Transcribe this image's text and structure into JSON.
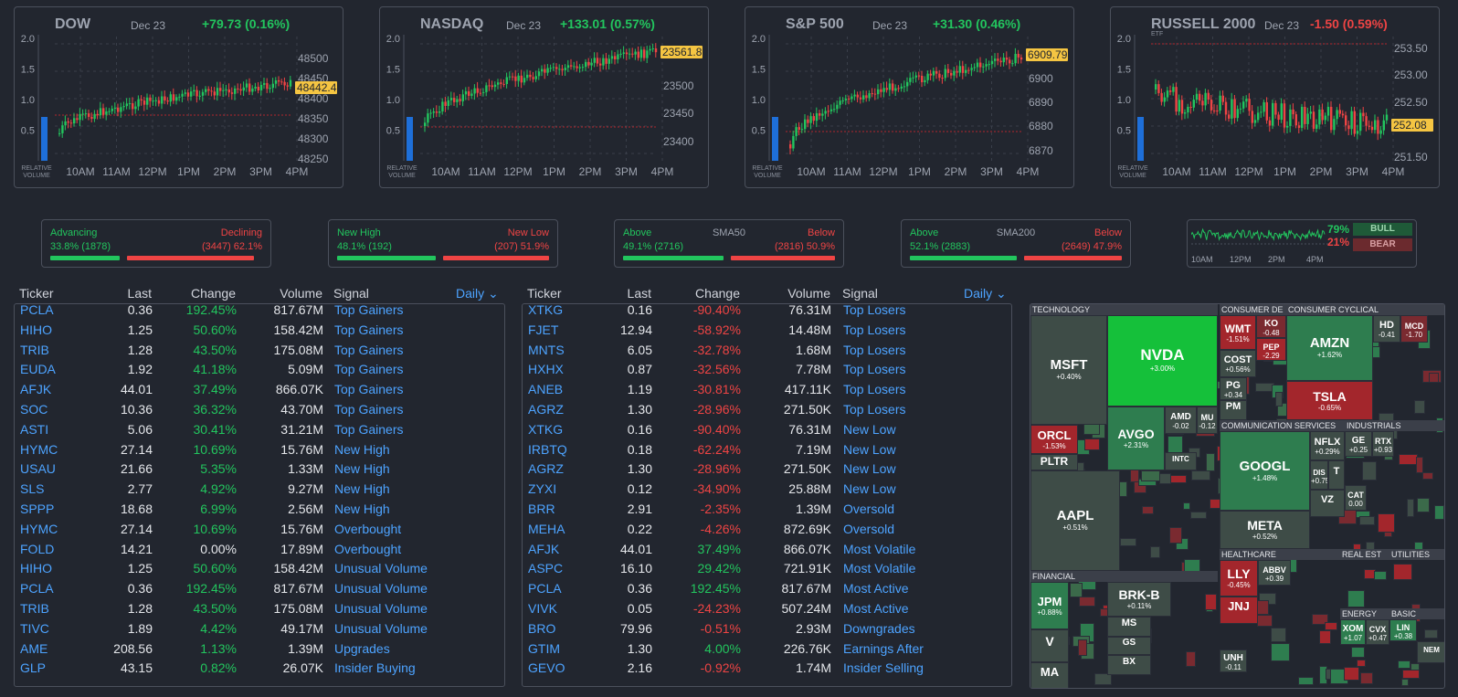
{
  "indices": [
    {
      "name": "DOW",
      "date": "Dec 23",
      "change": "+79.73 (0.16%)",
      "dir": "pos",
      "tag": "",
      "price_label": "48442.4",
      "y_ticks": [
        "48500",
        "48450",
        "48400",
        "48350",
        "48300",
        "48250"
      ]
    },
    {
      "name": "NASDAQ",
      "date": "Dec 23",
      "change": "+133.01 (0.57%)",
      "dir": "pos",
      "tag": "",
      "price_label": "23561.8",
      "y_ticks": [
        "23550",
        "23500",
        "23450",
        "23400"
      ]
    },
    {
      "name": "S&P 500",
      "date": "Dec 23",
      "change": "+31.30 (0.46%)",
      "dir": "pos",
      "tag": "",
      "price_label": "6909.79",
      "y_ticks": [
        "6900",
        "6890",
        "6880",
        "6870"
      ]
    },
    {
      "name": "RUSSELL 2000",
      "date": "Dec 23",
      "change": "-1.50 (0.59%)",
      "dir": "neg",
      "tag": "ETF",
      "price_label": "252.08",
      "y_ticks": [
        "253.50",
        "253.00",
        "252.50",
        "251.50"
      ]
    }
  ],
  "rel_volume_ticks": [
    "2.0",
    "1.5",
    "1.0",
    "0.5"
  ],
  "rel_volume_label": "RELATIVE VOLUME",
  "time_ticks": [
    "10AM",
    "11AM",
    "12PM",
    "1PM",
    "2PM",
    "3PM",
    "4PM"
  ],
  "breadth": [
    {
      "left_label": "Advancing",
      "center_label": "",
      "right_label": "Declining",
      "left_value": "33.8% (1878)",
      "right_value": "(3447) 62.1%",
      "left_frac": 0.338,
      "right_frac": 0.621
    },
    {
      "left_label": "New High",
      "center_label": "",
      "right_label": "New Low",
      "left_value": "48.1% (192)",
      "right_value": "(207) 51.9%",
      "left_frac": 0.481,
      "right_frac": 0.519
    },
    {
      "left_label": "Above",
      "center_label": "SMA50",
      "right_label": "Below",
      "left_value": "49.1% (2716)",
      "right_value": "(2816) 50.9%",
      "left_frac": 0.491,
      "right_frac": 0.509
    },
    {
      "left_label": "Above",
      "center_label": "SMA200",
      "right_label": "Below",
      "left_value": "52.1% (2883)",
      "right_value": "(2649) 47.9%",
      "left_frac": 0.521,
      "right_frac": 0.479
    }
  ],
  "sentiment": {
    "bull_pct": "79%",
    "bear_pct": "21%",
    "bull_label": "BULL",
    "bear_label": "BEAR",
    "times": [
      "10AM",
      "12PM",
      "2PM",
      "4PM"
    ]
  },
  "table_headers": {
    "ticker": "Ticker",
    "last": "Last",
    "change": "Change",
    "volume": "Volume",
    "signal": "Signal",
    "period": "Daily"
  },
  "gainers": [
    {
      "ticker": "PCLA",
      "last": "0.36",
      "change": "192.45%",
      "dir": "pos",
      "volume": "817.67M",
      "signal": "Top Gainers"
    },
    {
      "ticker": "HIHO",
      "last": "1.25",
      "change": "50.60%",
      "dir": "pos",
      "volume": "158.42M",
      "signal": "Top Gainers"
    },
    {
      "ticker": "TRIB",
      "last": "1.28",
      "change": "43.50%",
      "dir": "pos",
      "volume": "175.08M",
      "signal": "Top Gainers"
    },
    {
      "ticker": "EUDA",
      "last": "1.92",
      "change": "41.18%",
      "dir": "pos",
      "volume": "5.09M",
      "signal": "Top Gainers"
    },
    {
      "ticker": "AFJK",
      "last": "44.01",
      "change": "37.49%",
      "dir": "pos",
      "volume": "866.07K",
      "signal": "Top Gainers"
    },
    {
      "ticker": "SOC",
      "last": "10.36",
      "change": "36.32%",
      "dir": "pos",
      "volume": "43.70M",
      "signal": "Top Gainers"
    },
    {
      "ticker": "ASTI",
      "last": "5.06",
      "change": "30.41%",
      "dir": "pos",
      "volume": "31.21M",
      "signal": "Top Gainers"
    },
    {
      "ticker": "HYMC",
      "last": "27.14",
      "change": "10.69%",
      "dir": "pos",
      "volume": "15.76M",
      "signal": "New High"
    },
    {
      "ticker": "USAU",
      "last": "21.66",
      "change": "5.35%",
      "dir": "pos",
      "volume": "1.33M",
      "signal": "New High"
    },
    {
      "ticker": "SLS",
      "last": "2.77",
      "change": "4.92%",
      "dir": "pos",
      "volume": "9.27M",
      "signal": "New High"
    },
    {
      "ticker": "SPPP",
      "last": "18.68",
      "change": "6.99%",
      "dir": "pos",
      "volume": "2.56M",
      "signal": "New High"
    },
    {
      "ticker": "HYMC",
      "last": "27.14",
      "change": "10.69%",
      "dir": "pos",
      "volume": "15.76M",
      "signal": "Overbought"
    },
    {
      "ticker": "FOLD",
      "last": "14.21",
      "change": "0.00%",
      "dir": "zero",
      "volume": "17.89M",
      "signal": "Overbought"
    },
    {
      "ticker": "HIHO",
      "last": "1.25",
      "change": "50.60%",
      "dir": "pos",
      "volume": "158.42M",
      "signal": "Unusual Volume"
    },
    {
      "ticker": "PCLA",
      "last": "0.36",
      "change": "192.45%",
      "dir": "pos",
      "volume": "817.67M",
      "signal": "Unusual Volume"
    },
    {
      "ticker": "TRIB",
      "last": "1.28",
      "change": "43.50%",
      "dir": "pos",
      "volume": "175.08M",
      "signal": "Unusual Volume"
    },
    {
      "ticker": "TIVC",
      "last": "1.89",
      "change": "4.42%",
      "dir": "pos",
      "volume": "49.17M",
      "signal": "Unusual Volume"
    },
    {
      "ticker": "AME",
      "last": "208.56",
      "change": "1.13%",
      "dir": "pos",
      "volume": "1.39M",
      "signal": "Upgrades"
    },
    {
      "ticker": "GLP",
      "last": "43.15",
      "change": "0.82%",
      "dir": "pos",
      "volume": "26.07K",
      "signal": "Insider Buying"
    }
  ],
  "losers": [
    {
      "ticker": "XTKG",
      "last": "0.16",
      "change": "-90.40%",
      "dir": "neg",
      "volume": "76.31M",
      "signal": "Top Losers"
    },
    {
      "ticker": "FJET",
      "last": "12.94",
      "change": "-58.92%",
      "dir": "neg",
      "volume": "14.48M",
      "signal": "Top Losers"
    },
    {
      "ticker": "MNTS",
      "last": "6.05",
      "change": "-32.78%",
      "dir": "neg",
      "volume": "1.68M",
      "signal": "Top Losers"
    },
    {
      "ticker": "HXHX",
      "last": "0.87",
      "change": "-32.56%",
      "dir": "neg",
      "volume": "7.78M",
      "signal": "Top Losers"
    },
    {
      "ticker": "ANEB",
      "last": "1.19",
      "change": "-30.81%",
      "dir": "neg",
      "volume": "417.11K",
      "signal": "Top Losers"
    },
    {
      "ticker": "AGRZ",
      "last": "1.30",
      "change": "-28.96%",
      "dir": "neg",
      "volume": "271.50K",
      "signal": "Top Losers"
    },
    {
      "ticker": "XTKG",
      "last": "0.16",
      "change": "-90.40%",
      "dir": "neg",
      "volume": "76.31M",
      "signal": "New Low"
    },
    {
      "ticker": "IRBTQ",
      "last": "0.18",
      "change": "-62.24%",
      "dir": "neg",
      "volume": "7.19M",
      "signal": "New Low"
    },
    {
      "ticker": "AGRZ",
      "last": "1.30",
      "change": "-28.96%",
      "dir": "neg",
      "volume": "271.50K",
      "signal": "New Low"
    },
    {
      "ticker": "ZYXI",
      "last": "0.12",
      "change": "-34.90%",
      "dir": "neg",
      "volume": "25.88M",
      "signal": "New Low"
    },
    {
      "ticker": "BRR",
      "last": "2.91",
      "change": "-2.35%",
      "dir": "neg",
      "volume": "1.39M",
      "signal": "Oversold"
    },
    {
      "ticker": "MEHA",
      "last": "0.22",
      "change": "-4.26%",
      "dir": "neg",
      "volume": "872.69K",
      "signal": "Oversold"
    },
    {
      "ticker": "AFJK",
      "last": "44.01",
      "change": "37.49%",
      "dir": "pos",
      "volume": "866.07K",
      "signal": "Most Volatile"
    },
    {
      "ticker": "ASPC",
      "last": "16.10",
      "change": "29.42%",
      "dir": "pos",
      "volume": "721.91K",
      "signal": "Most Volatile"
    },
    {
      "ticker": "PCLA",
      "last": "0.36",
      "change": "192.45%",
      "dir": "pos",
      "volume": "817.67M",
      "signal": "Most Active"
    },
    {
      "ticker": "VIVK",
      "last": "0.05",
      "change": "-24.23%",
      "dir": "neg",
      "volume": "507.24M",
      "signal": "Most Active"
    },
    {
      "ticker": "BRO",
      "last": "79.96",
      "change": "-0.51%",
      "dir": "neg",
      "volume": "2.93M",
      "signal": "Downgrades"
    },
    {
      "ticker": "GTIM",
      "last": "1.30",
      "change": "4.00%",
      "dir": "pos",
      "volume": "226.76K",
      "signal": "Earnings After"
    },
    {
      "ticker": "GEVO",
      "last": "2.16",
      "change": "-0.92%",
      "dir": "neg",
      "volume": "1.74M",
      "signal": "Insider Selling"
    }
  ],
  "heatmap": {
    "sectors": [
      "TECHNOLOGY",
      "CONSUMER DE",
      "CONSUMER CYCLICAL",
      "COMMUNICATION SERVICES",
      "INDUSTRIALS",
      "FINANCIAL",
      "HEALTHCARE",
      "REAL EST",
      "UTILITIES",
      "ENERGY",
      "BASIC"
    ],
    "tiles": [
      {
        "t": "MSFT",
        "p": "+0.40%"
      },
      {
        "t": "NVDA",
        "p": "+3.00%"
      },
      {
        "t": "AVGO",
        "p": "+2.31%"
      },
      {
        "t": "ORCL",
        "p": "-1.53%"
      },
      {
        "t": "PLTR",
        "p": ""
      },
      {
        "t": "AMD",
        "p": "-0.02"
      },
      {
        "t": "MU",
        "p": "-0.12"
      },
      {
        "t": "INTC",
        "p": ""
      },
      {
        "t": "AAPL",
        "p": "+0.51%"
      },
      {
        "t": "WMT",
        "p": "-1.51%"
      },
      {
        "t": "KO",
        "p": "-0.48"
      },
      {
        "t": "COST",
        "p": "+0.56%"
      },
      {
        "t": "PEP",
        "p": "-2.29"
      },
      {
        "t": "PG",
        "p": "+0.34"
      },
      {
        "t": "PM",
        "p": ""
      },
      {
        "t": "AMZN",
        "p": "+1.62%"
      },
      {
        "t": "TSLA",
        "p": "-0.65%"
      },
      {
        "t": "HD",
        "p": "-0.41"
      },
      {
        "t": "MCD",
        "p": "-1.70"
      },
      {
        "t": "GOOGL",
        "p": "+1.48%"
      },
      {
        "t": "META",
        "p": "+0.52%"
      },
      {
        "t": "NFLX",
        "p": "+0.29%"
      },
      {
        "t": "DIS",
        "p": "+0.75"
      },
      {
        "t": "T",
        "p": ""
      },
      {
        "t": "VZ",
        "p": ""
      },
      {
        "t": "GE",
        "p": "+0.25"
      },
      {
        "t": "RTX",
        "p": "+0.93"
      },
      {
        "t": "CAT",
        "p": "0.00"
      },
      {
        "t": "JPM",
        "p": "+0.88%"
      },
      {
        "t": "V",
        "p": ""
      },
      {
        "t": "MA",
        "p": ""
      },
      {
        "t": "BRK-B",
        "p": "+0.11%"
      },
      {
        "t": "MS",
        "p": ""
      },
      {
        "t": "GS",
        "p": ""
      },
      {
        "t": "BX",
        "p": ""
      },
      {
        "t": "LLY",
        "p": "-0.45%"
      },
      {
        "t": "JNJ",
        "p": ""
      },
      {
        "t": "ABBV",
        "p": "+0.39"
      },
      {
        "t": "UNH",
        "p": "-0.11"
      },
      {
        "t": "XOM",
        "p": "+1.07"
      },
      {
        "t": "CVX",
        "p": "+0.47"
      },
      {
        "t": "LIN",
        "p": "+0.38"
      },
      {
        "t": "NEM",
        "p": ""
      }
    ]
  }
}
